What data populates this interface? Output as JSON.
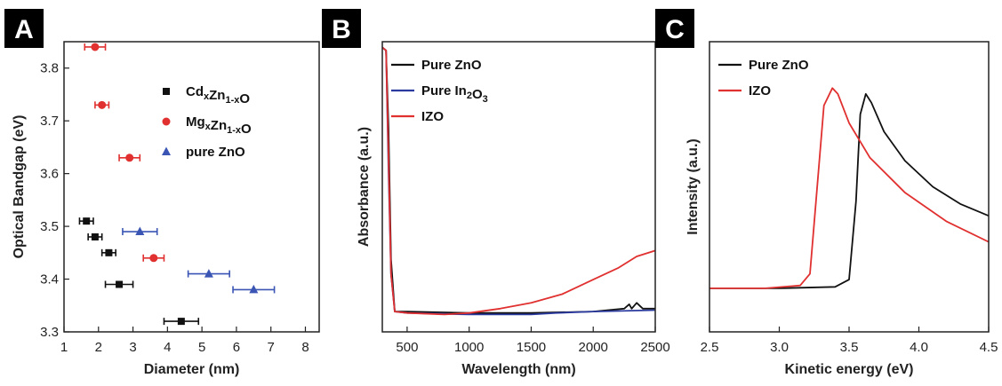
{
  "chart_data": [
    {
      "panel": "A",
      "type": "scatter",
      "xlabel": "Diameter (nm)",
      "ylabel": "Optical Bandgap (eV)",
      "xlim": [
        1,
        8.4
      ],
      "ylim": [
        3.3,
        3.85
      ],
      "xticks": [
        1,
        2,
        3,
        4,
        5,
        6,
        7,
        8
      ],
      "yticks": [
        3.3,
        3.4,
        3.5,
        3.6,
        3.7,
        3.8
      ],
      "legend_position": "upper-right",
      "series": [
        {
          "legend_main": "Cd",
          "legend_sub1": "x",
          "legend_mid": "Zn",
          "legend_sub2": "1-x",
          "legend_end": "O",
          "marker": "square",
          "color": "#111111",
          "points": [
            {
              "x": 1.65,
              "y": 3.51,
              "xerr": 0.2
            },
            {
              "x": 1.9,
              "y": 3.48,
              "xerr": 0.2
            },
            {
              "x": 2.3,
              "y": 3.45,
              "xerr": 0.2
            },
            {
              "x": 2.6,
              "y": 3.39,
              "xerr": 0.4
            },
            {
              "x": 4.4,
              "y": 3.32,
              "xerr": 0.5
            }
          ]
        },
        {
          "legend_main": "Mg",
          "legend_sub1": "x",
          "legend_mid": "Zn",
          "legend_sub2": "1-x",
          "legend_end": "O",
          "marker": "circle",
          "color": "#e0302f",
          "points": [
            {
              "x": 1.9,
              "y": 3.84,
              "xerr": 0.3
            },
            {
              "x": 2.1,
              "y": 3.73,
              "xerr": 0.2
            },
            {
              "x": 2.9,
              "y": 3.63,
              "xerr": 0.3
            },
            {
              "x": 3.6,
              "y": 3.44,
              "xerr": 0.3
            }
          ]
        },
        {
          "legend_main": "pure ZnO",
          "legend_sub1": "",
          "legend_mid": "",
          "legend_sub2": "",
          "legend_end": "",
          "marker": "triangle",
          "color": "#3a55b4",
          "points": [
            {
              "x": 3.2,
              "y": 3.49,
              "xerr": 0.5
            },
            {
              "x": 5.2,
              "y": 3.41,
              "xerr": 0.6
            },
            {
              "x": 6.5,
              "y": 3.38,
              "xerr": 0.6
            }
          ]
        }
      ]
    },
    {
      "panel": "B",
      "type": "line",
      "xlabel": "Wavelength (nm)",
      "ylabel": "Absorbance (a.u.)",
      "xlim": [
        300,
        2500
      ],
      "ylim": [
        0,
        1
      ],
      "xticks": [
        500,
        1000,
        1500,
        2000,
        2500
      ],
      "legend_position": "upper-left",
      "series": [
        {
          "legend_main": "Pure ZnO",
          "legend_sub1": "",
          "legend_mid": "",
          "legend_sub2": "",
          "legend_end": "",
          "color": "#111111",
          "x": [
            300,
            330,
            350,
            370,
            400,
            500,
            1000,
            1500,
            2000,
            2250,
            2290,
            2310,
            2350,
            2400,
            2500
          ],
          "y": [
            0.98,
            0.97,
            0.7,
            0.25,
            0.07,
            0.07,
            0.065,
            0.065,
            0.07,
            0.08,
            0.095,
            0.08,
            0.1,
            0.08,
            0.08
          ]
        },
        {
          "legend_main": "Pure In",
          "legend_sub1": "",
          "legend_mid": "2",
          "legend_sub2": "O",
          "legend_end": "3",
          "color": "#2b3a9e",
          "x": [
            300,
            330,
            350,
            370,
            400,
            500,
            1000,
            1500,
            1700,
            2000,
            2500
          ],
          "y": [
            0.98,
            0.97,
            0.55,
            0.2,
            0.07,
            0.065,
            0.06,
            0.06,
            0.065,
            0.07,
            0.075
          ]
        },
        {
          "legend_main": "IZO",
          "legend_sub1": "",
          "legend_mid": "",
          "legend_sub2": "",
          "legend_end": "",
          "color": "#e0302f",
          "x": [
            300,
            330,
            350,
            370,
            400,
            500,
            800,
            1000,
            1250,
            1500,
            1750,
            2000,
            2200,
            2350,
            2500
          ],
          "y": [
            0.98,
            0.97,
            0.6,
            0.2,
            0.07,
            0.065,
            0.06,
            0.065,
            0.08,
            0.1,
            0.13,
            0.18,
            0.22,
            0.26,
            0.28
          ]
        }
      ]
    },
    {
      "panel": "C",
      "type": "line",
      "xlabel": "Kinetic energy (eV)",
      "ylabel": "Intensity (a.u.)",
      "xlim": [
        2.5,
        4.5
      ],
      "ylim": [
        0,
        1
      ],
      "xticks": [
        2.5,
        3.0,
        3.5,
        4.0,
        4.5
      ],
      "legend_position": "upper-left",
      "series": [
        {
          "legend_main": "Pure ZnO",
          "legend_sub1": "",
          "legend_mid": "",
          "legend_sub2": "",
          "legend_end": "",
          "color": "#111111",
          "x": [
            2.5,
            3.0,
            3.4,
            3.5,
            3.55,
            3.58,
            3.62,
            3.66,
            3.75,
            3.9,
            4.1,
            4.3,
            4.5
          ],
          "y": [
            0.15,
            0.15,
            0.155,
            0.18,
            0.45,
            0.75,
            0.82,
            0.79,
            0.69,
            0.59,
            0.5,
            0.44,
            0.4
          ]
        },
        {
          "legend_main": "IZO",
          "legend_sub1": "",
          "legend_mid": "",
          "legend_sub2": "",
          "legend_end": "",
          "color": "#e0302f",
          "x": [
            2.5,
            2.9,
            3.15,
            3.22,
            3.28,
            3.32,
            3.38,
            3.42,
            3.5,
            3.65,
            3.9,
            4.2,
            4.5
          ],
          "y": [
            0.15,
            0.15,
            0.16,
            0.2,
            0.55,
            0.78,
            0.84,
            0.82,
            0.72,
            0.6,
            0.48,
            0.38,
            0.31
          ]
        }
      ]
    }
  ]
}
